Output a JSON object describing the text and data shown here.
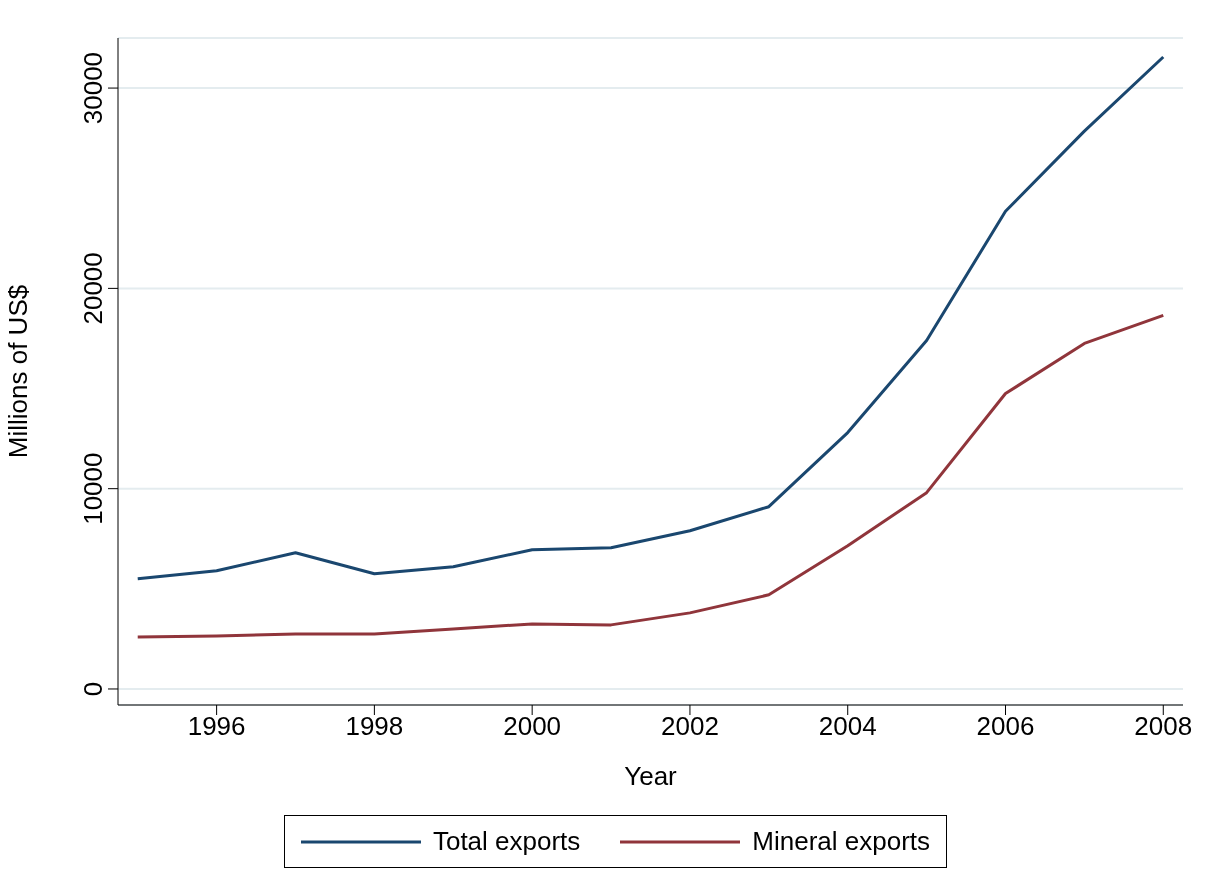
{
  "chart_data": {
    "type": "line",
    "xlabel": "Year",
    "ylabel": "Millions of US$",
    "x": [
      1995,
      1996,
      1997,
      1998,
      1999,
      2000,
      2001,
      2002,
      2003,
      2004,
      2005,
      2006,
      2007,
      2008
    ],
    "series": [
      {
        "name": "Total exports",
        "color": "#1a476f",
        "values": [
          5500,
          5900,
          6800,
          5750,
          6100,
          6950,
          7050,
          7900,
          9100,
          12800,
          17400,
          23850,
          27850,
          31550
        ]
      },
      {
        "name": "Mineral exports",
        "color": "#90353b",
        "values": [
          2600,
          2650,
          2750,
          2750,
          3000,
          3250,
          3200,
          3800,
          4700,
          7150,
          9800,
          14750,
          17250,
          18650
        ]
      }
    ],
    "xlim": [
      1994.75,
      2008.25
    ],
    "xticks": [
      1996,
      1998,
      2000,
      2002,
      2004,
      2006,
      2008
    ],
    "ylim": [
      -800,
      32500
    ],
    "yticks": [
      0,
      10000,
      20000,
      30000
    ],
    "grid": "y",
    "legend": "bottom",
    "marker": "none",
    "line_style": "solid"
  }
}
